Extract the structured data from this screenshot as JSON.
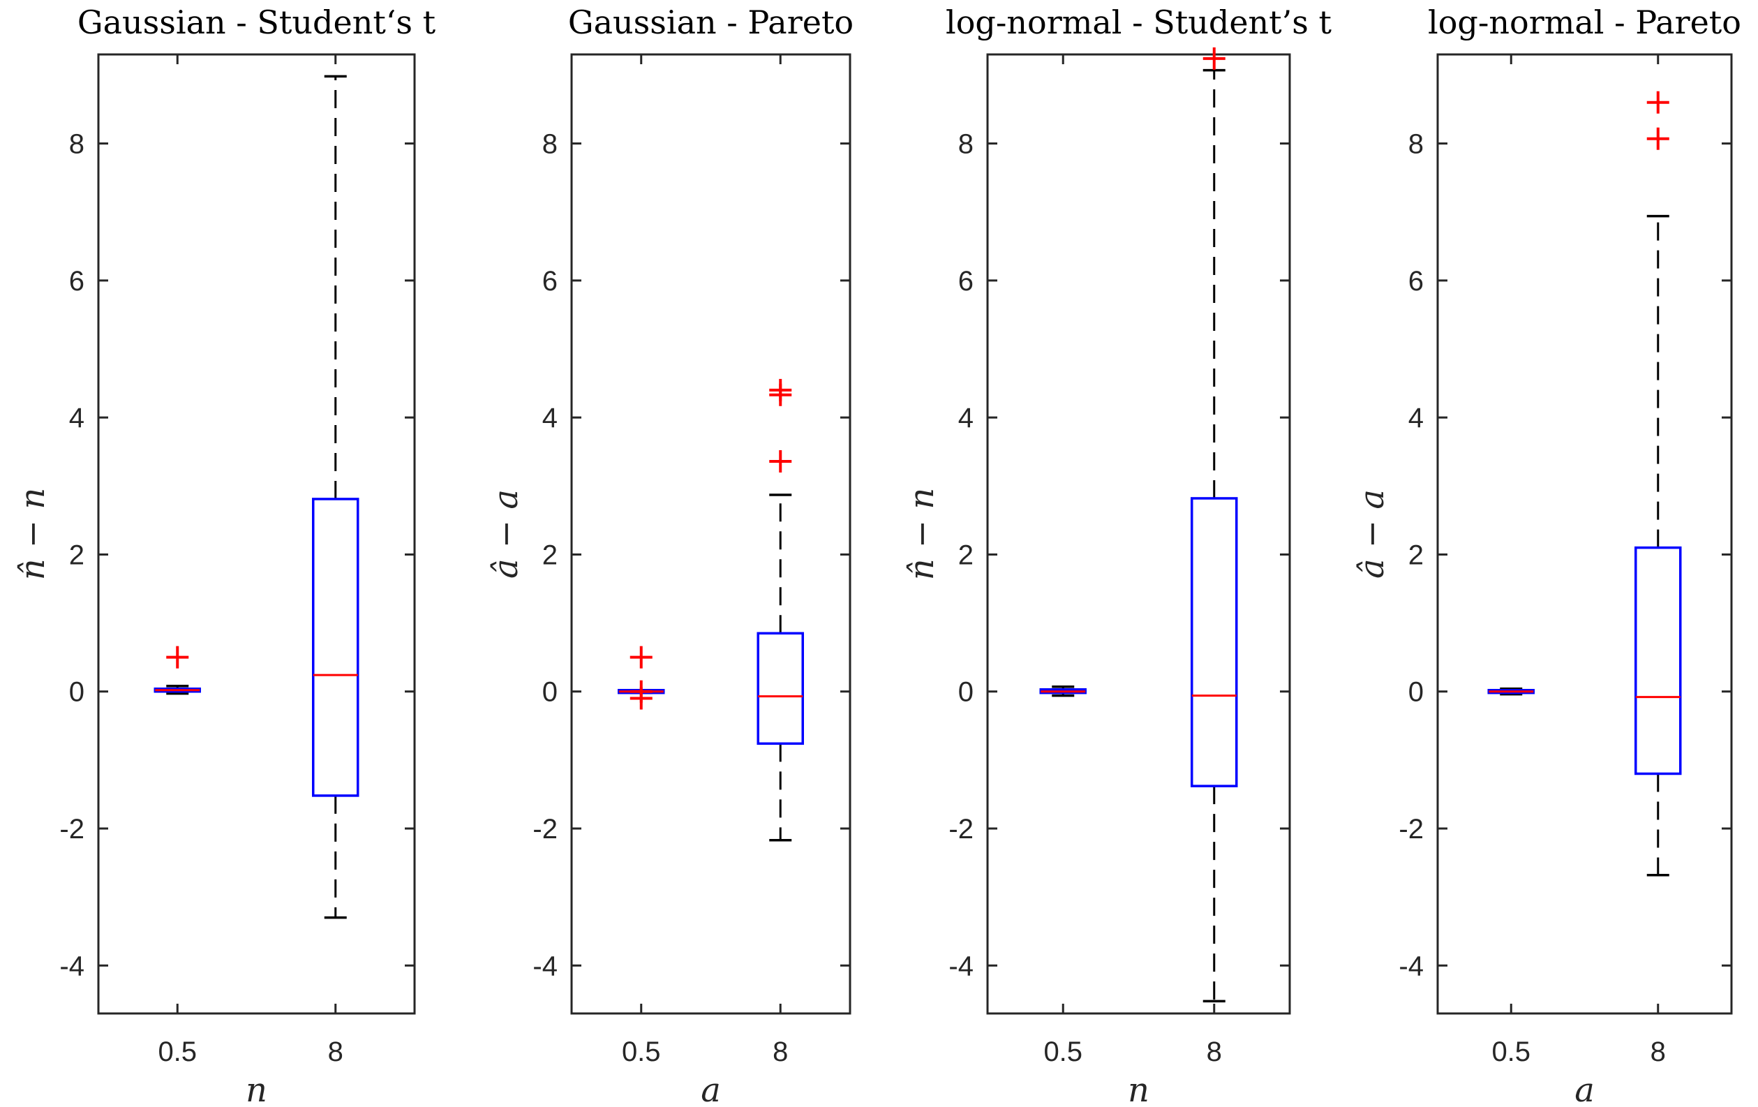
{
  "chart_data": [
    {
      "type": "boxplot",
      "title": "Gaussian - Student‘s t",
      "xlabel": "n",
      "ylabel": "n̂ − n",
      "categories": [
        "0.5",
        "8"
      ],
      "ylim": [
        -4.7,
        9.3
      ],
      "yticks": [
        -4,
        -2,
        0,
        2,
        4,
        6,
        8
      ],
      "boxes": [
        {
          "category": "0.5",
          "q1": 0.0,
          "median": 0.02,
          "q3": 0.04,
          "whisker_low": -0.03,
          "whisker_high": 0.08,
          "outliers": [
            0.5
          ]
        },
        {
          "category": "8",
          "q1": -1.52,
          "median": 0.24,
          "q3": 2.81,
          "whisker_low": -3.3,
          "whisker_high": 8.98,
          "outliers": []
        }
      ]
    },
    {
      "type": "boxplot",
      "title": "Gaussian - Pareto",
      "xlabel": "a",
      "ylabel": "â − a",
      "categories": [
        "0.5",
        "8"
      ],
      "ylim": [
        -4.7,
        9.3
      ],
      "yticks": [
        -4,
        -2,
        0,
        2,
        4,
        6,
        8
      ],
      "boxes": [
        {
          "category": "0.5",
          "q1": -0.02,
          "median": 0.0,
          "q3": 0.02,
          "whisker_low": -0.02,
          "whisker_high": 0.02,
          "outliers": [
            0.5,
            0.0,
            -0.1
          ]
        },
        {
          "category": "8",
          "q1": -0.76,
          "median": -0.07,
          "q3": 0.85,
          "whisker_low": -2.17,
          "whisker_high": 2.87,
          "outliers": [
            3.36,
            4.33,
            4.4
          ]
        }
      ]
    },
    {
      "type": "boxplot",
      "title": "log-normal - Student’s t",
      "xlabel": "n",
      "ylabel": "n̂ − n",
      "categories": [
        "0.5",
        "8"
      ],
      "ylim": [
        -4.7,
        9.3
      ],
      "yticks": [
        -4,
        -2,
        0,
        2,
        4,
        6,
        8
      ],
      "boxes": [
        {
          "category": "0.5",
          "q1": -0.02,
          "median": 0.0,
          "q3": 0.03,
          "whisker_low": -0.06,
          "whisker_high": 0.07,
          "outliers": []
        },
        {
          "category": "8",
          "q1": -1.38,
          "median": -0.06,
          "q3": 2.82,
          "whisker_low": -4.52,
          "whisker_high": 9.07,
          "outliers": [
            9.24
          ]
        }
      ]
    },
    {
      "type": "boxplot",
      "title": "log-normal - Pareto",
      "xlabel": "a",
      "ylabel": "â − a",
      "categories": [
        "0.5",
        "8"
      ],
      "ylim": [
        -4.7,
        9.3
      ],
      "yticks": [
        -4,
        -2,
        0,
        2,
        4,
        6,
        8
      ],
      "boxes": [
        {
          "category": "0.5",
          "q1": -0.02,
          "median": 0.0,
          "q3": 0.02,
          "whisker_low": -0.04,
          "whisker_high": 0.04,
          "outliers": []
        },
        {
          "category": "8",
          "q1": -1.2,
          "median": -0.08,
          "q3": 2.1,
          "whisker_low": -2.68,
          "whisker_high": 6.94,
          "outliers": [
            8.07,
            8.6
          ]
        }
      ]
    }
  ],
  "colors": {
    "box": "#0000ff",
    "median": "#ff0000",
    "outlier": "#ff0000",
    "whisker": "#000000",
    "axes": "#262626"
  }
}
